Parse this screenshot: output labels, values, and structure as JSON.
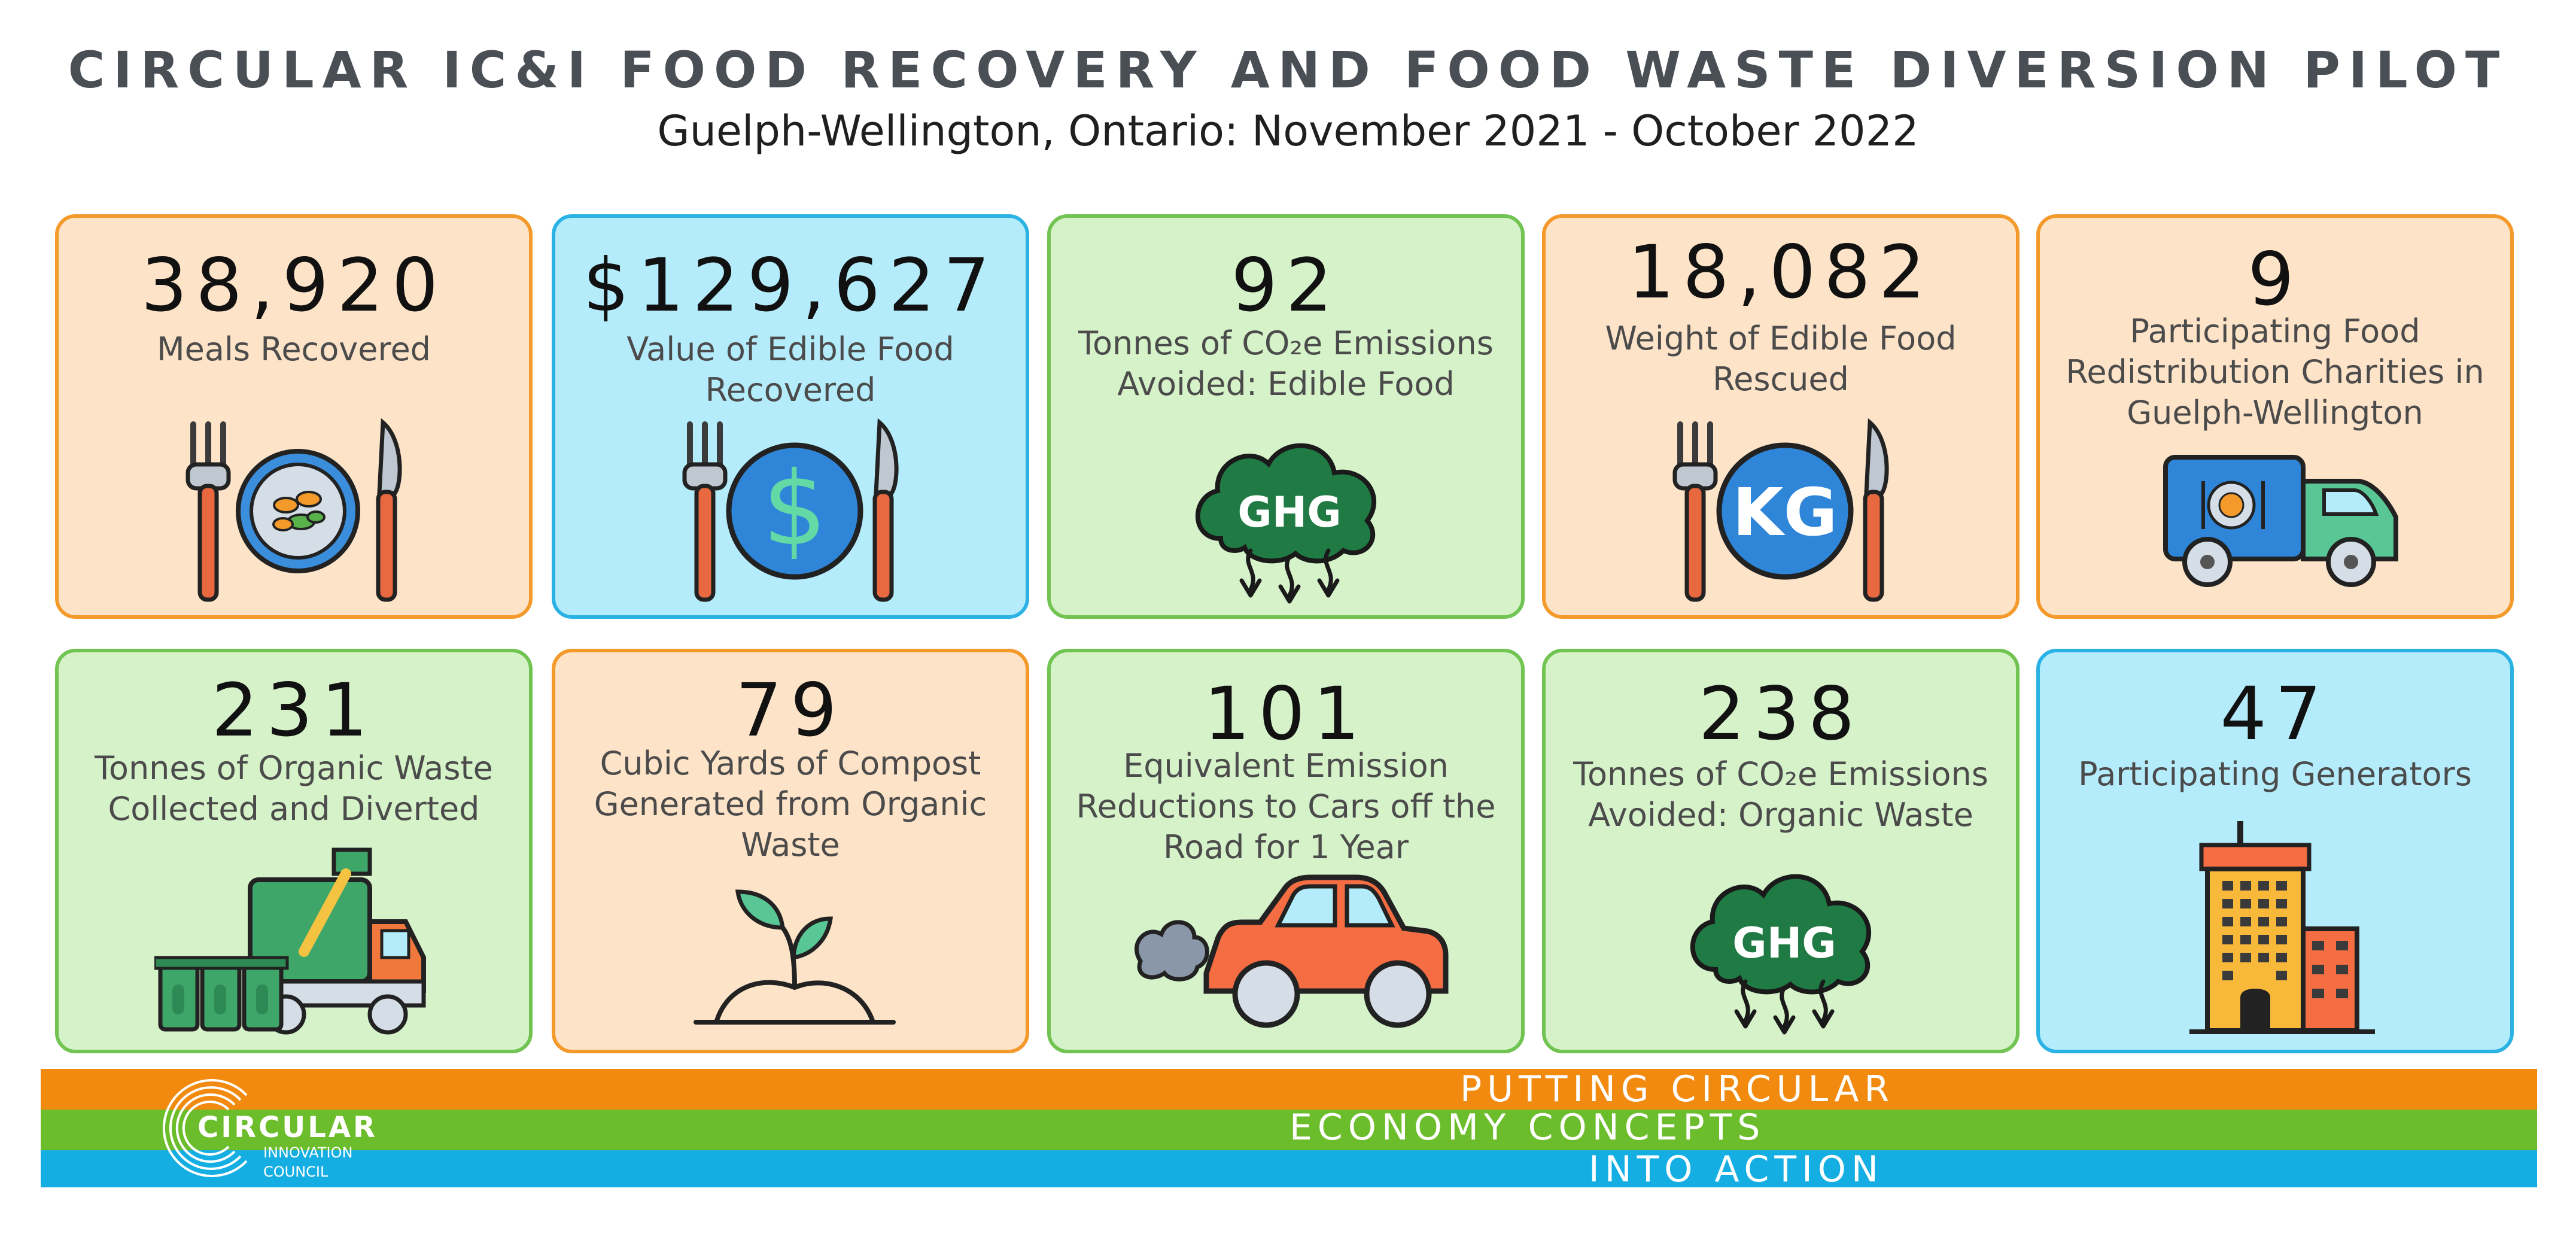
{
  "header": {
    "title": "CIRCULAR IC&I FOOD RECOVERY AND FOOD WASTE DIVERSION PILOT",
    "subtitle": "Guelph-Wellington, Ontario: November 2021 - October 2022"
  },
  "cards": [
    {
      "value": "38,920",
      "label": "Meals Recovered",
      "icon": "plate-with-food-icon",
      "color": "#fde3c7"
    },
    {
      "value": "$129,627",
      "label": "Value of Edible Food Recovered",
      "icon": "dollar-plate-icon",
      "color": "#b5ecfb"
    },
    {
      "value": "92",
      "label": "Tonnes of CO₂e Emissions Avoided: Edible Food",
      "icon": "ghg-cloud-icon",
      "icon_text": "GHG",
      "color": "#d6f2c9"
    },
    {
      "value": "18,082",
      "label": "Weight of Edible Food Rescued",
      "icon": "kg-plate-icon",
      "icon_text": "KG",
      "color": "#fde3c7"
    },
    {
      "value": "9",
      "label": "Participating Food Redistribution Charities in Guelph-Wellington",
      "icon": "delivery-truck-icon",
      "color": "#fde3c7"
    },
    {
      "value": "231",
      "label": "Tonnes of Organic Waste Collected and Diverted",
      "icon": "garbage-truck-bins-icon",
      "color": "#d6f2c9"
    },
    {
      "value": "79",
      "label": "Cubic Yards of Compost Generated from Organic Waste",
      "icon": "sprout-icon",
      "color": "#fde3c7"
    },
    {
      "value": "101",
      "label": "Equivalent Emission Reductions to Cars off the Road for 1 Year",
      "icon": "car-exhaust-icon",
      "color": "#d6f2c9"
    },
    {
      "value": "238",
      "label": "Tonnes of CO₂e Emissions Avoided: Organic Waste",
      "icon": "ghg-cloud-icon",
      "icon_text": "GHG",
      "color": "#d6f2c9"
    },
    {
      "value": "47",
      "label": "Participating Generators",
      "icon": "building-icon",
      "color": "#b5ecfb"
    }
  ],
  "footer": {
    "line1": "PUTTING CIRCULAR",
    "line2": "ECONOMY CONCEPTS",
    "line3": "INTO ACTION",
    "logo_word": "CIRCULAR",
    "logo_line2": "INNOVATION",
    "logo_line3": "COUNCIL",
    "colors": {
      "orange": "#f28a10",
      "green": "#6cbd2c",
      "blue": "#15aee3"
    }
  }
}
